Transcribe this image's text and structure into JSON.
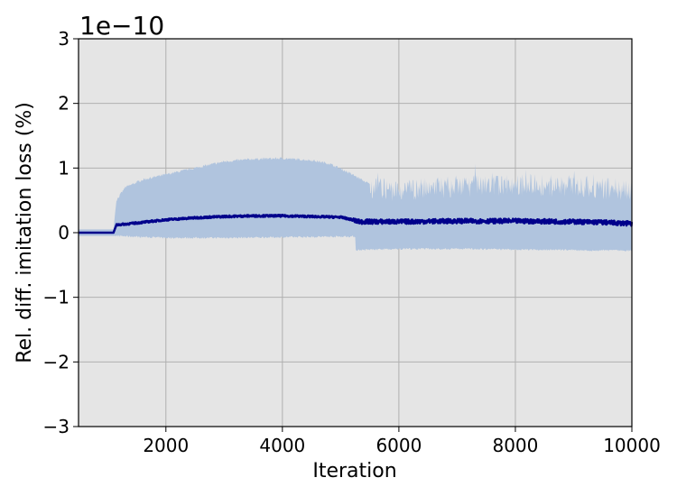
{
  "chart_data": {
    "type": "line",
    "title": "",
    "xlabel": "Iteration",
    "ylabel": "Rel. diff. imitation loss (%)",
    "y_offset_text": "1e−10",
    "y_scale_factor": "1e-10",
    "xlim": [
      500,
      10000
    ],
    "ylim": [
      -3,
      3
    ],
    "xticks": [
      2000,
      4000,
      6000,
      8000,
      10000
    ],
    "xtick_labels": [
      "2000",
      "4000",
      "6000",
      "8000",
      "10000"
    ],
    "yticks": [
      -3,
      -2,
      -1,
      0,
      1,
      2,
      3
    ],
    "ytick_labels": [
      "−3",
      "−2",
      "−1",
      "0",
      "1",
      "2",
      "3"
    ],
    "grid": true,
    "legend": "none",
    "colors": {
      "background": "#e5e5e5",
      "band": "#b0c4de",
      "mean_line": "#00008b",
      "grid": "#b0b0b0"
    },
    "series": [
      {
        "kind": "mean",
        "x": [
          500,
          1100,
          1150,
          1500,
          2000,
          2500,
          3000,
          3500,
          4000,
          4500,
          5000,
          5200,
          5300,
          6000,
          7000,
          8000,
          9000,
          9500,
          10000
        ],
        "y": [
          0.0,
          0.0,
          0.12,
          0.15,
          0.2,
          0.23,
          0.25,
          0.26,
          0.26,
          0.25,
          0.24,
          0.2,
          0.17,
          0.17,
          0.18,
          0.18,
          0.17,
          0.16,
          0.14
        ]
      },
      {
        "kind": "band-upper",
        "x": [
          500,
          1100,
          1150,
          1300,
          1600,
          2000,
          2500,
          3000,
          3500,
          4000,
          4500,
          4800,
          5000,
          5200,
          5500,
          6000,
          6500,
          7000,
          8000,
          9000,
          10000
        ],
        "y": [
          0.05,
          0.05,
          0.5,
          0.7,
          0.82,
          0.9,
          1.0,
          1.1,
          1.14,
          1.15,
          1.12,
          1.07,
          0.99,
          0.9,
          0.75,
          0.68,
          0.72,
          0.75,
          0.78,
          0.75,
          0.7
        ]
      },
      {
        "kind": "band-lower",
        "x": [
          500,
          1100,
          1150,
          2000,
          3000,
          4000,
          5000,
          5250,
          5260,
          6000,
          7000,
          8000,
          9000,
          10000
        ],
        "y": [
          -0.05,
          -0.05,
          -0.05,
          -0.08,
          -0.08,
          -0.07,
          -0.06,
          -0.06,
          -0.27,
          -0.25,
          -0.25,
          -0.26,
          -0.27,
          -0.28
        ]
      }
    ]
  }
}
